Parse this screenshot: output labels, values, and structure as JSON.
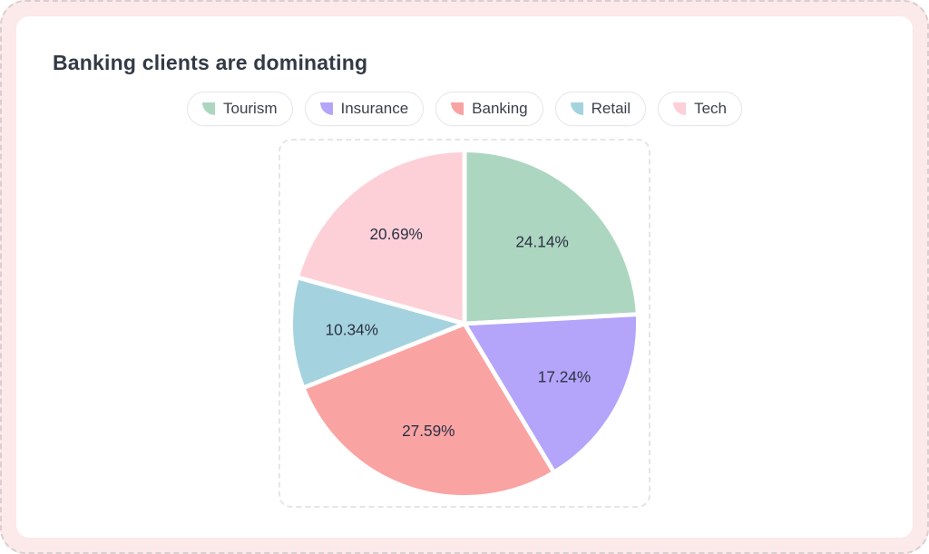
{
  "page": {
    "title": "Banking clients are dominating"
  },
  "legend": [
    {
      "label": "Tourism",
      "color": "#acd6c0",
      "icon": "pie-slice-icon"
    },
    {
      "label": "Insurance",
      "color": "#b4a5fa",
      "icon": "pie-slice-icon"
    },
    {
      "label": "Banking",
      "color": "#faa3a3",
      "icon": "pie-slice-icon"
    },
    {
      "label": "Retail",
      "color": "#a4d3df",
      "icon": "pie-slice-icon"
    },
    {
      "label": "Tech",
      "color": "#fdd0d8",
      "icon": "pie-slice-icon"
    }
  ],
  "chart_data": {
    "type": "pie",
    "title": "Banking clients are dominating",
    "categories": [
      "Tourism",
      "Insurance",
      "Banking",
      "Retail",
      "Tech"
    ],
    "values": [
      24.14,
      17.24,
      27.59,
      10.34,
      20.69
    ],
    "labels": [
      "24.14%",
      "17.24%",
      "27.59%",
      "10.34%",
      "20.69%"
    ],
    "colors": [
      "#acd6c0",
      "#b4a5fa",
      "#faa3a3",
      "#a4d3df",
      "#fdd0d8"
    ],
    "start_angle_deg": 0,
    "direction": "clockwise",
    "slice_separator_color": "#ffffff",
    "label_color": "#2c3143",
    "legend_position": "top"
  },
  "colors": {
    "page_background": "#fce9e9",
    "card_background": "#ffffff",
    "title_text": "#333a45",
    "legend_border": "#e4e5ea",
    "chart_box_border": "#e6e4ea"
  }
}
